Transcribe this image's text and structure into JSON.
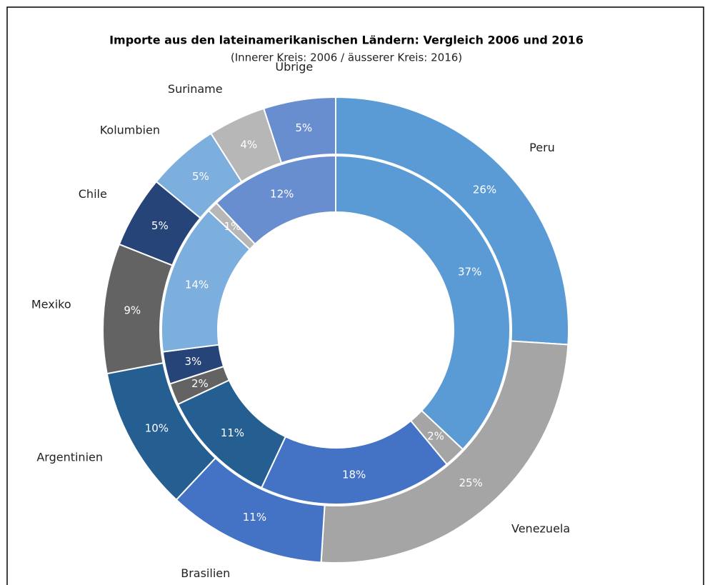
{
  "chart_data": {
    "type": "doughnut",
    "title": "Importe aus den lateinamerikanischen Ländern: Vergleich 2006 und 2016",
    "subtitle": "(Innerer Kreis: 2006 / äusserer Kreis: 2016)",
    "categories": [
      "Peru",
      "Venezuela",
      "Brasilien",
      "Argentinien",
      "Mexiko",
      "Chile",
      "Kolumbien",
      "Suriname",
      "Übrige"
    ],
    "colors": [
      "#5b9bd5",
      "#a5a5a5",
      "#4472c4",
      "#255e91",
      "#636363",
      "#264478",
      "#7cafdd",
      "#b7b7b7",
      "#698ed0"
    ],
    "series": [
      {
        "values": [
          37,
          2,
          18,
          11,
          2,
          3,
          14,
          1,
          12
        ],
        "value_labels": [
          "37%",
          "2%",
          "18%",
          "11%",
          "2%",
          "3%",
          "14%",
          "1%",
          "12%"
        ]
      },
      {
        "values": [
          26,
          25,
          11,
          10,
          9,
          5,
          5,
          4,
          5
        ],
        "value_labels": [
          "26%",
          "25%",
          "11%",
          "10%",
          "9%",
          "5%",
          "5%",
          "4%",
          "5%"
        ]
      }
    ]
  }
}
